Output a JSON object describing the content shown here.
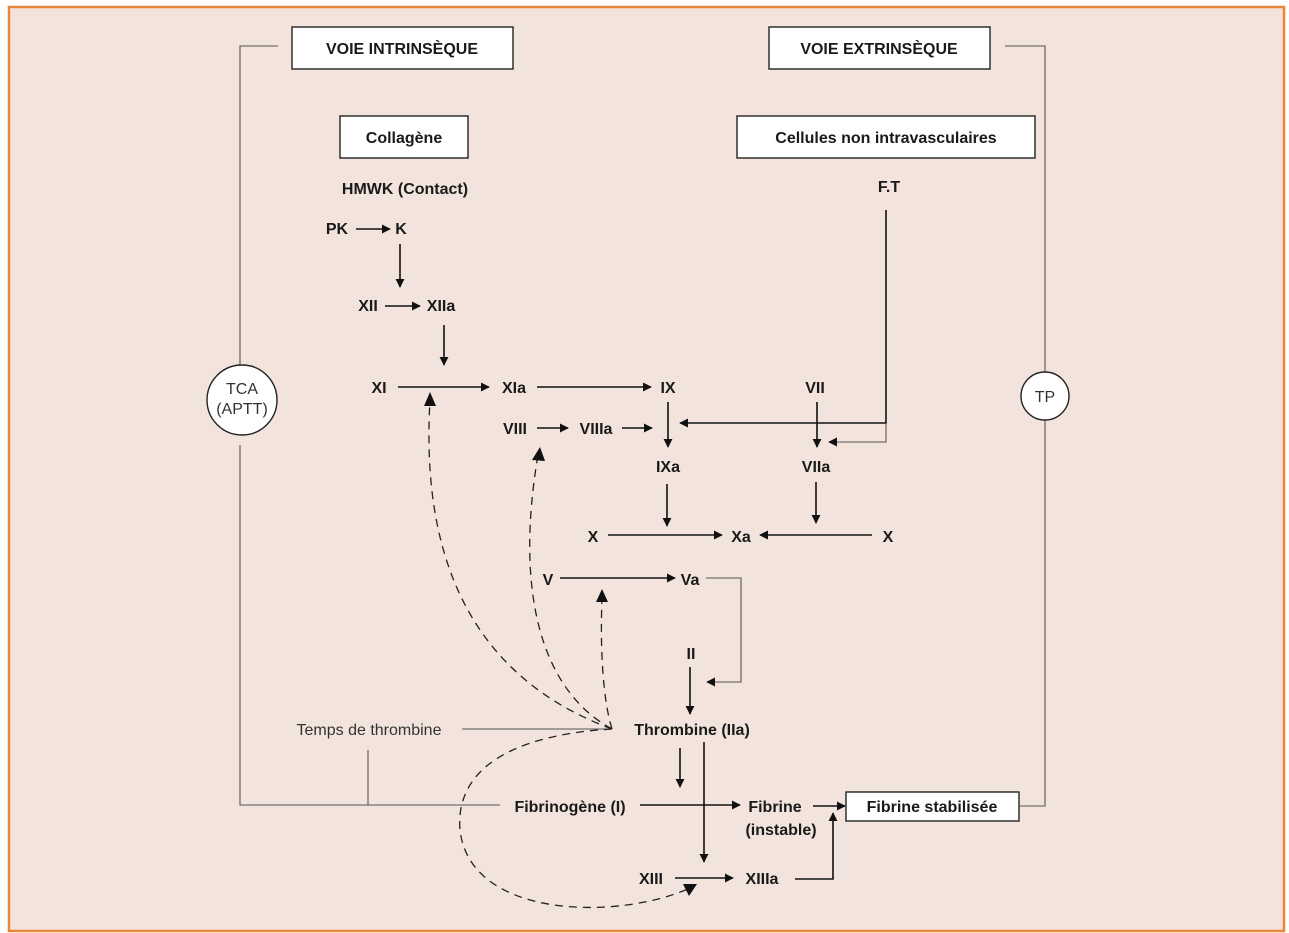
{
  "pathways": {
    "intrinsic": "VOIE INTRINSÈQUE",
    "extrinsic": "VOIE EXTRINSÈQUE"
  },
  "tests": {
    "tca": [
      "TCA",
      "(APTT)"
    ],
    "tp": "TP",
    "thrombin_time": "Temps de thrombine"
  },
  "nodes": {
    "collagen": "Collagène",
    "cells": "Cellules non intravasculaires",
    "hmwk": "HMWK (Contact)",
    "ft": "F.T",
    "pk": "PK",
    "k": "K",
    "xii": "XII",
    "xiia": "XIIa",
    "xi": "XI",
    "xia": "XIa",
    "ix": "IX",
    "vii": "VII",
    "viii": "VIII",
    "viiia": "VIIIa",
    "ixa": "IXa",
    "viia": "VIIa",
    "x_left": "X",
    "xa": "Xa",
    "x_right": "X",
    "v": "V",
    "va": "Va",
    "ii": "II",
    "thrombin": "Thrombine (IIa)",
    "fibrinogen": "Fibrinogène (I)",
    "fibrin1": "Fibrine",
    "fibrin2": "(instable)",
    "fibrin_stab": "Fibrine stabilisée",
    "xiii": "XIII",
    "xiiia": "XIIIa"
  },
  "colors": {
    "background": "#f2e4dc",
    "border": "#e8873a",
    "text": "#1a1a1a"
  }
}
